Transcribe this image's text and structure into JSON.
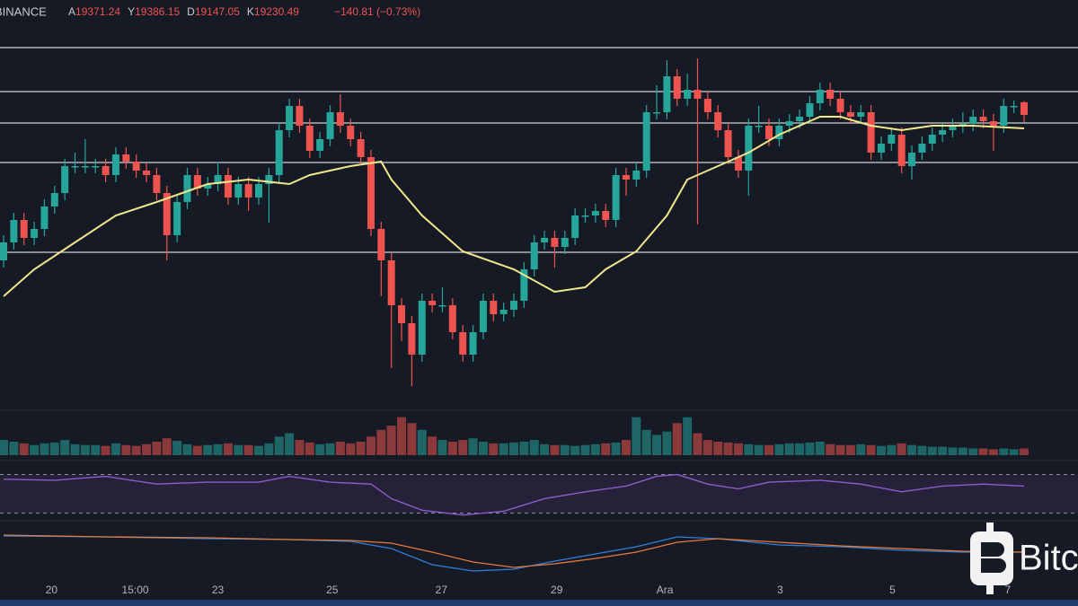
{
  "chart_data": {
    "type": "candlestick",
    "header": {
      "exchange": "BINANCE",
      "ohlc_keys": [
        "A",
        "Y",
        "D",
        "K"
      ],
      "change": "−140.81 (−0.73%)"
    },
    "watermark": "Bitc",
    "ylim": [
      15960,
      20510
    ],
    "up_color": "#26a69a",
    "down_color": "#ef5350",
    "levels": [
      19980,
      19490,
      19140,
      18700,
      17700
    ],
    "candles": [
      [
        17610,
        17890,
        17530,
        17810
      ],
      [
        17810,
        18140,
        17730,
        18060
      ],
      [
        18060,
        18140,
        17780,
        17860
      ],
      [
        17860,
        18040,
        17780,
        17960
      ],
      [
        17960,
        18290,
        17880,
        18210
      ],
      [
        18210,
        18440,
        18130,
        18360
      ],
      [
        18360,
        18740,
        18280,
        18660
      ],
      [
        18660,
        18810,
        18580,
        18660
      ],
      [
        18660,
        18960,
        18580,
        18660
      ],
      [
        18660,
        18740,
        18580,
        18660
      ],
      [
        18660,
        18740,
        18480,
        18560
      ],
      [
        18560,
        18870,
        18480,
        18790
      ],
      [
        18790,
        18870,
        18630,
        18710
      ],
      [
        18710,
        18790,
        18530,
        18610
      ],
      [
        18610,
        18690,
        18480,
        18560
      ],
      [
        18560,
        18640,
        18280,
        18360
      ],
      [
        18360,
        18440,
        17610,
        17890
      ],
      [
        17890,
        18340,
        17810,
        18260
      ],
      [
        18260,
        18640,
        18180,
        18560
      ],
      [
        18560,
        18640,
        18330,
        18410
      ],
      [
        18410,
        18540,
        18330,
        18460
      ],
      [
        18460,
        18710,
        18380,
        18560
      ],
      [
        18560,
        18640,
        18230,
        18310
      ],
      [
        18310,
        18540,
        18230,
        18460
      ],
      [
        18460,
        18540,
        18160,
        18310
      ],
      [
        18310,
        18540,
        18230,
        18460
      ],
      [
        18460,
        18640,
        18030,
        18560
      ],
      [
        18560,
        19140,
        18480,
        19060
      ],
      [
        19060,
        19410,
        18980,
        19330
      ],
      [
        19330,
        19410,
        19030,
        19110
      ],
      [
        19110,
        19190,
        18750,
        18830
      ],
      [
        18830,
        19040,
        18750,
        18960
      ],
      [
        18960,
        19340,
        18880,
        19260
      ],
      [
        19260,
        19460,
        19030,
        19110
      ],
      [
        19110,
        19190,
        18880,
        18960
      ],
      [
        18960,
        19040,
        18680,
        18760
      ],
      [
        18760,
        18840,
        17880,
        17960
      ],
      [
        17960,
        18040,
        17210,
        17610
      ],
      [
        17610,
        17690,
        16410,
        17110
      ],
      [
        17110,
        17190,
        16710,
        16910
      ],
      [
        16910,
        16990,
        16210,
        16560
      ],
      [
        16560,
        17240,
        16480,
        17160
      ],
      [
        17160,
        17240,
        17030,
        17110
      ],
      [
        17110,
        17310,
        17030,
        17110
      ],
      [
        17110,
        17190,
        16730,
        16810
      ],
      [
        16810,
        16890,
        16480,
        16560
      ],
      [
        16560,
        16890,
        16480,
        16810
      ],
      [
        16810,
        17240,
        16730,
        17160
      ],
      [
        17160,
        17240,
        16930,
        17010
      ],
      [
        17010,
        17140,
        16930,
        17060
      ],
      [
        17060,
        17240,
        16980,
        17160
      ],
      [
        17160,
        17590,
        17080,
        17510
      ],
      [
        17510,
        17890,
        17430,
        17810
      ],
      [
        17810,
        17940,
        17730,
        17860
      ],
      [
        17860,
        17940,
        17530,
        17760
      ],
      [
        17760,
        17940,
        17680,
        17860
      ],
      [
        17860,
        18190,
        17780,
        18110
      ],
      [
        18110,
        18190,
        18030,
        18110
      ],
      [
        18110,
        18240,
        18030,
        18160
      ],
      [
        18160,
        18240,
        17980,
        18060
      ],
      [
        18060,
        18640,
        17980,
        18560
      ],
      [
        18560,
        18640,
        18330,
        18510
      ],
      [
        18510,
        18690,
        18430,
        18610
      ],
      [
        18610,
        19340,
        18530,
        19260
      ],
      [
        19260,
        19560,
        19180,
        19260
      ],
      [
        19260,
        19840,
        19180,
        19660
      ],
      [
        19660,
        19740,
        19330,
        19410
      ],
      [
        19410,
        19690,
        19330,
        19510
      ],
      [
        19510,
        19860,
        18010,
        19410
      ],
      [
        19410,
        19490,
        19180,
        19260
      ],
      [
        19260,
        19340,
        18980,
        19060
      ],
      [
        19060,
        19140,
        18680,
        18760
      ],
      [
        18760,
        18840,
        18530,
        18610
      ],
      [
        18610,
        19190,
        18330,
        19110
      ],
      [
        19110,
        19330,
        19030,
        19110
      ],
      [
        19110,
        19190,
        18880,
        18960
      ],
      [
        18960,
        19190,
        18880,
        19110
      ],
      [
        19110,
        19240,
        19030,
        19160
      ],
      [
        19160,
        19290,
        19080,
        19210
      ],
      [
        19210,
        19440,
        19130,
        19360
      ],
      [
        19360,
        19590,
        19280,
        19510
      ],
      [
        19510,
        19590,
        19330,
        19410
      ],
      [
        19410,
        19490,
        19180,
        19260
      ],
      [
        19260,
        19340,
        19130,
        19210
      ],
      [
        19210,
        19340,
        19130,
        19260
      ],
      [
        19260,
        19340,
        18730,
        18810
      ],
      [
        18810,
        18990,
        18730,
        18910
      ],
      [
        18910,
        19090,
        18830,
        19010
      ],
      [
        19010,
        19090,
        18580,
        18660
      ],
      [
        18660,
        18890,
        18510,
        18810
      ],
      [
        18810,
        18990,
        18730,
        18910
      ],
      [
        18910,
        19090,
        18830,
        19010
      ],
      [
        19010,
        19140,
        18930,
        19060
      ],
      [
        19060,
        19190,
        18980,
        19110
      ],
      [
        19110,
        19260,
        19030,
        19130
      ],
      [
        19130,
        19290,
        19050,
        19210
      ],
      [
        19210,
        19290,
        19080,
        19160
      ],
      [
        19160,
        19240,
        18830,
        19110
      ],
      [
        19110,
        19410,
        19030,
        19330
      ],
      [
        19330,
        19390,
        19250,
        19330
      ],
      [
        19371.24,
        19386.15,
        19147.05,
        19230.49
      ]
    ],
    "ma": {
      "color": "#f0e68c",
      "x": [
        0,
        3,
        7,
        11,
        15,
        20,
        24,
        28,
        30,
        34,
        37,
        38,
        41,
        45,
        50,
        54,
        57,
        59,
        62,
        65,
        67,
        70,
        73,
        76,
        80,
        82,
        85,
        88,
        91,
        95,
        100
      ],
      "values": [
        17210,
        17510,
        17810,
        18110,
        18260,
        18460,
        18510,
        18460,
        18560,
        18660,
        18710,
        18510,
        18110,
        17710,
        17510,
        17260,
        17310,
        17510,
        17710,
        18110,
        18510,
        18660,
        18810,
        19010,
        19210,
        19210,
        19110,
        19060,
        19110,
        19110,
        19080
      ]
    },
    "volume": {
      "ylim": [
        0,
        50
      ],
      "values": [
        18,
        16,
        14,
        12,
        14,
        15,
        18,
        13,
        12,
        12,
        11,
        14,
        12,
        11,
        13,
        16,
        20,
        17,
        13,
        11,
        12,
        13,
        14,
        12,
        12,
        11,
        14,
        22,
        26,
        18,
        15,
        13,
        14,
        16,
        14,
        16,
        22,
        30,
        35,
        45,
        38,
        30,
        22,
        18,
        16,
        18,
        20,
        16,
        14,
        14,
        15,
        16,
        18,
        13,
        12,
        12,
        11,
        12,
        13,
        14,
        15,
        18,
        45,
        30,
        24,
        28,
        38,
        45,
        26,
        18,
        16,
        15,
        14,
        13,
        12,
        12,
        13,
        14,
        14,
        15,
        16,
        13,
        12,
        12,
        13,
        12,
        11,
        12,
        14,
        12,
        11,
        10,
        10,
        9,
        9,
        8,
        8,
        7,
        8,
        7,
        8
      ]
    },
    "rsi": {
      "color": "#8e5cc9",
      "ylim": [
        24,
        76
      ],
      "bands": [
        30,
        70
      ],
      "x": [
        0,
        5,
        10,
        15,
        20,
        25,
        28,
        32,
        36,
        38,
        41,
        45,
        49,
        53,
        57,
        61,
        64,
        66,
        69,
        72,
        75,
        80,
        84,
        88,
        92,
        96,
        100
      ],
      "values": [
        65,
        64,
        68,
        60,
        62,
        62,
        68,
        62,
        60,
        45,
        33,
        28,
        32,
        45,
        52,
        58,
        68,
        70,
        60,
        55,
        62,
        64,
        60,
        52,
        58,
        60,
        58
      ]
    },
    "macd": {
      "ylim": [
        -350,
        350
      ],
      "x": [
        0,
        10,
        20,
        28,
        34,
        38,
        42,
        46,
        50,
        54,
        58,
        62,
        66,
        70,
        76,
        82,
        88,
        94,
        100
      ],
      "series": [
        {
          "color": "#2f7fd8",
          "values": [
            200,
            190,
            170,
            160,
            140,
            60,
            -120,
            -190,
            -170,
            -80,
            0,
            80,
            190,
            170,
            100,
            80,
            40,
            20,
            20
          ]
        },
        {
          "color": "#e8793a",
          "values": [
            210,
            190,
            180,
            160,
            150,
            120,
            20,
            -90,
            -150,
            -110,
            -50,
            20,
            130,
            170,
            130,
            90,
            60,
            30,
            20
          ]
        }
      ]
    },
    "xticks": [
      {
        "value": 4.7,
        "label": "20"
      },
      {
        "value": 12.9,
        "label": "15:00"
      },
      {
        "value": 21,
        "label": "23"
      },
      {
        "value": 32.2,
        "label": "25"
      },
      {
        "value": 42.9,
        "label": "27"
      },
      {
        "value": 54.2,
        "label": "29"
      },
      {
        "value": 64.8,
        "label": "Ara"
      },
      {
        "value": 76.1,
        "label": "3"
      },
      {
        "value": 87.1,
        "label": "5"
      },
      {
        "value": 98.4,
        "label": "7"
      }
    ]
  }
}
